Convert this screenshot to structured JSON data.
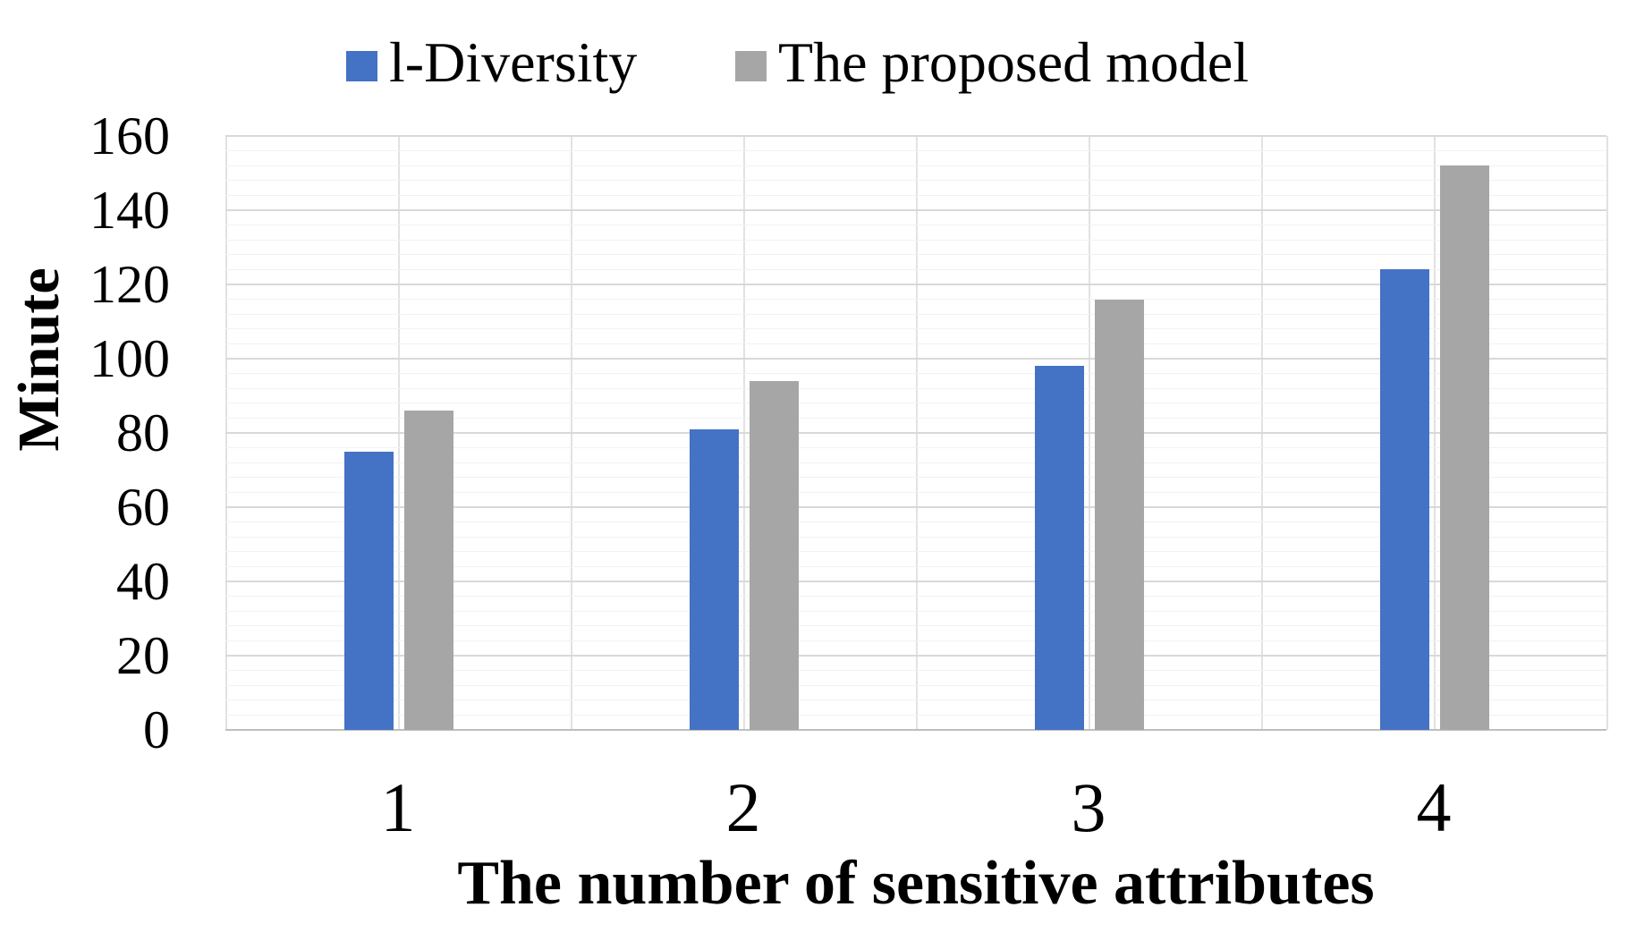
{
  "chart_data": {
    "type": "bar",
    "categories": [
      "1",
      "2",
      "3",
      "4"
    ],
    "series": [
      {
        "name": "l-Diversity",
        "color": "#4472C4",
        "values": [
          75,
          81,
          98,
          124
        ]
      },
      {
        "name": "The proposed model",
        "color": "#A6A6A6",
        "values": [
          86,
          94,
          116,
          152
        ]
      }
    ],
    "xlabel": "The number of sensitive attributes",
    "ylabel": "Minute",
    "ylim": [
      0,
      160
    ],
    "y_major_step": 20,
    "y_minor_step": 4,
    "y_ticks": [
      "0",
      "20",
      "40",
      "60",
      "80",
      "100",
      "120",
      "140",
      "160"
    ],
    "grid": "horizontal-major, horizontal-minor, vertical-half-category",
    "legend_position": "top"
  },
  "colors": {
    "major_gridline": "#d9d9d9",
    "minor_gridline": "#f2f2f2",
    "vertical_gridline": "#e2e2e2",
    "axis_baseline": "#bfbfbf",
    "background": "#ffffff",
    "text": "#000000"
  }
}
